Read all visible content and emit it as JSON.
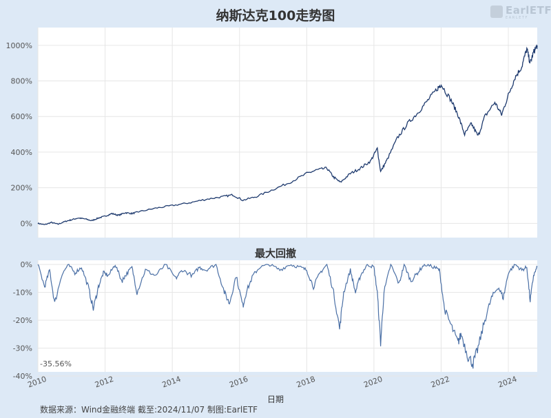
{
  "chart_data": [
    {
      "type": "line",
      "title": "纳斯达克100走势图",
      "xlim": [
        2010.0,
        2024.86
      ],
      "ylim": [
        -80,
        1100
      ],
      "yticks": [
        "0%",
        "200%",
        "400%",
        "600%",
        "800%",
        "1000%"
      ],
      "ytick_values": [
        0,
        200,
        400,
        600,
        800,
        1000
      ],
      "color": "#1e3a6e",
      "grid": true,
      "series": [
        {
          "x": [
            2010.0,
            2010.2,
            2010.4,
            2010.6,
            2010.8,
            2011.0,
            2011.2,
            2011.4,
            2011.6,
            2011.8,
            2012.0,
            2012.2,
            2012.4,
            2012.6,
            2012.8,
            2013.0,
            2013.5,
            2014.0,
            2014.5,
            2015.0,
            2015.5,
            2015.8,
            2016.1,
            2016.5,
            2017.0,
            2017.5,
            2018.0,
            2018.3,
            2018.6,
            2018.8,
            2019.0,
            2019.3,
            2019.6,
            2019.9,
            2020.1,
            2020.2,
            2020.4,
            2020.7,
            2021.0,
            2021.3,
            2021.6,
            2021.9,
            2022.0,
            2022.3,
            2022.5,
            2022.7,
            2022.9,
            2023.1,
            2023.3,
            2023.6,
            2023.8,
            2024.0,
            2024.2,
            2024.4,
            2024.55,
            2024.65,
            2024.75,
            2024.86
          ],
          "y": [
            0,
            -8,
            5,
            -5,
            10,
            20,
            30,
            25,
            15,
            30,
            40,
            55,
            45,
            60,
            55,
            65,
            85,
            100,
            115,
            135,
            150,
            160,
            130,
            150,
            190,
            230,
            280,
            300,
            310,
            260,
            230,
            280,
            310,
            350,
            420,
            290,
            360,
            480,
            560,
            620,
            690,
            760,
            780,
            690,
            610,
            500,
            560,
            490,
            600,
            680,
            610,
            720,
            820,
            880,
            980,
            900,
            960,
            1000
          ]
        }
      ]
    },
    {
      "type": "area",
      "title": "最大回撤",
      "xlim": [
        2010.0,
        2024.86
      ],
      "ylim": [
        -40,
        0
      ],
      "yticks": [
        "0%",
        "-10%",
        "-20%",
        "-30%",
        "-40%"
      ],
      "ytick_values": [
        0,
        -10,
        -20,
        -30,
        -40
      ],
      "xticks": [
        "2010",
        "2012",
        "2014",
        "2016",
        "2018",
        "2020",
        "2022",
        "2024"
      ],
      "xtick_values": [
        2010,
        2012,
        2014,
        2016,
        2018,
        2020,
        2022,
        2024
      ],
      "xlabel": "日期",
      "color": "#4a6fa5",
      "annotation": "-35.56%",
      "min_drawdown": -35.56,
      "series": [
        {
          "x": [
            2010.0,
            2010.2,
            2010.35,
            2010.5,
            2010.7,
            2010.9,
            2011.1,
            2011.3,
            2011.5,
            2011.65,
            2011.8,
            2011.95,
            2012.1,
            2012.3,
            2012.5,
            2012.6,
            2012.8,
            2012.95,
            2013.2,
            2013.5,
            2013.8,
            2014.1,
            2014.3,
            2014.6,
            2014.8,
            2015.0,
            2015.3,
            2015.55,
            2015.7,
            2015.9,
            2016.1,
            2016.2,
            2016.4,
            2016.6,
            2016.9,
            2017.2,
            2017.5,
            2017.8,
            2018.0,
            2018.2,
            2018.4,
            2018.6,
            2018.8,
            2018.98,
            2019.1,
            2019.3,
            2019.45,
            2019.6,
            2019.8,
            2020.0,
            2020.1,
            2020.2,
            2020.3,
            2020.5,
            2020.75,
            2020.9,
            2021.1,
            2021.3,
            2021.5,
            2021.8,
            2021.95,
            2022.1,
            2022.3,
            2022.5,
            2022.6,
            2022.8,
            2022.95,
            2023.1,
            2023.3,
            2023.5,
            2023.7,
            2023.85,
            2024.0,
            2024.2,
            2024.4,
            2024.55,
            2024.65,
            2024.75,
            2024.86
          ],
          "y": [
            0,
            -8,
            -2,
            -14,
            -4,
            0,
            -3,
            -1,
            -8,
            -16,
            -8,
            -3,
            -4,
            0,
            -6,
            -4,
            -1,
            -10,
            -2,
            -4,
            0,
            -5,
            -2,
            -4,
            -1,
            -2,
            0,
            -10,
            -14,
            -4,
            -15,
            -10,
            -4,
            -1,
            0,
            -2,
            0,
            -1,
            -2,
            -8,
            -3,
            0,
            -10,
            -23,
            -10,
            -2,
            -10,
            -4,
            0,
            -1,
            -10,
            -28,
            -10,
            0,
            -7,
            0,
            -6,
            -3,
            0,
            -1,
            -2,
            -16,
            -22,
            -28,
            -25,
            -33,
            -35.56,
            -30,
            -20,
            -12,
            -8,
            -12,
            -3,
            0,
            -2,
            -1,
            -13,
            -4,
            -1
          ]
        }
      ]
    }
  ],
  "labels": {
    "main_title": "纳斯达克100走势图",
    "sub_title": "最大回撤",
    "xlabel": "日期",
    "footer": "数据来源：Wind金融终端 截至:2024/11/07 制图:EarlETF",
    "logo": "EarlETF",
    "logo_sub": "E A R L E T F"
  }
}
